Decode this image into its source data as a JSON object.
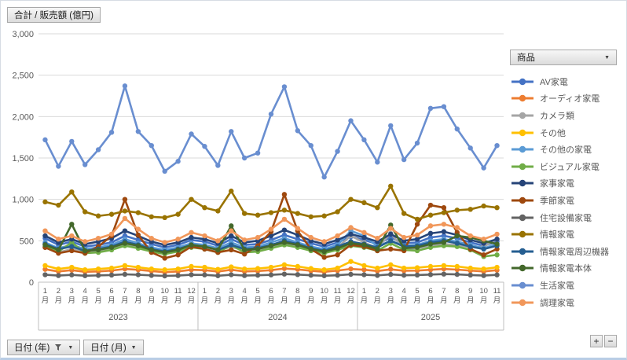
{
  "title_button": "合計 / 販売額 (億円)",
  "legend": {
    "field_label": "商品"
  },
  "filters": [
    {
      "label": "日付 (年)",
      "icons": [
        "filter-icon",
        "dropdown-caret"
      ]
    },
    {
      "label": "日付 (月)",
      "icons": [
        "dropdown-caret"
      ]
    }
  ],
  "zoom_buttons": {
    "plus": "+",
    "minus": "−"
  },
  "axis_colors": {
    "text": "#595959",
    "gridline": "#d9d9d9",
    "axis_line": "#bfbfbf"
  },
  "chart_data": {
    "type": "line",
    "title": "合計 / 販売額 (億円)",
    "ylabel": "",
    "xlabel": "",
    "ylim": [
      0,
      3000
    ],
    "ytick_step": 500,
    "ytick_labels": [
      "0",
      "500",
      "1,000",
      "1,500",
      "2,000",
      "2,500",
      "3,000"
    ],
    "grid": true,
    "legend_position": "right",
    "month_suffix": "月",
    "x_groups": [
      {
        "year": "2023",
        "months": [
          1,
          2,
          3,
          4,
          5,
          6,
          7,
          8,
          9,
          10,
          11,
          12
        ]
      },
      {
        "year": "2024",
        "months": [
          1,
          2,
          3,
          4,
          5,
          6,
          7,
          8,
          9,
          10,
          11,
          12
        ]
      },
      {
        "year": "2025",
        "months": [
          1,
          2,
          3,
          4,
          5,
          6,
          7,
          8,
          9,
          10,
          11
        ]
      }
    ],
    "series": [
      {
        "name": "AV家電",
        "color": "#4472C4",
        "values": [
          530,
          450,
          490,
          430,
          450,
          480,
          560,
          510,
          460,
          420,
          450,
          510,
          490,
          440,
          520,
          450,
          460,
          510,
          570,
          520,
          470,
          430,
          480,
          550,
          510,
          460,
          540,
          470,
          480,
          540,
          560,
          530,
          480,
          440,
          490
        ]
      },
      {
        "name": "オーディオ家電",
        "color": "#ED7D31",
        "values": [
          155,
          130,
          145,
          125,
          130,
          140,
          160,
          150,
          135,
          120,
          130,
          150,
          145,
          128,
          150,
          130,
          135,
          145,
          165,
          155,
          138,
          125,
          140,
          160,
          150,
          135,
          155,
          138,
          140,
          150,
          160,
          152,
          140,
          130,
          145
        ]
      },
      {
        "name": "カメラ類",
        "color": "#A5A5A5",
        "values": [
          420,
          360,
          400,
          360,
          380,
          410,
          450,
          420,
          380,
          350,
          390,
          470,
          420,
          380,
          430,
          380,
          390,
          420,
          460,
          430,
          390,
          360,
          420,
          560,
          480,
          410,
          590,
          400,
          410,
          440,
          460,
          450,
          420,
          430,
          520
        ]
      },
      {
        "name": "その他",
        "color": "#FFC000",
        "values": [
          200,
          160,
          180,
          150,
          160,
          170,
          200,
          180,
          160,
          150,
          160,
          190,
          180,
          155,
          185,
          160,
          165,
          180,
          210,
          190,
          165,
          150,
          170,
          250,
          200,
          170,
          210,
          170,
          175,
          190,
          200,
          190,
          170,
          160,
          180
        ]
      },
      {
        "name": "その他の家電",
        "color": "#5B9BD5",
        "values": [
          480,
          410,
          450,
          400,
          420,
          450,
          520,
          470,
          420,
          390,
          420,
          470,
          450,
          410,
          480,
          420,
          430,
          480,
          530,
          480,
          430,
          400,
          450,
          620,
          560,
          430,
          500,
          440,
          450,
          500,
          520,
          490,
          450,
          410,
          460
        ]
      },
      {
        "name": "ビジュアル家電",
        "color": "#70AD47",
        "values": [
          430,
          370,
          480,
          350,
          360,
          390,
          440,
          410,
          370,
          340,
          370,
          420,
          400,
          360,
          450,
          360,
          370,
          410,
          450,
          420,
          380,
          350,
          390,
          440,
          420,
          380,
          470,
          390,
          380,
          420,
          440,
          430,
          390,
          310,
          330
        ]
      },
      {
        "name": "家事家電",
        "color": "#264478",
        "values": [
          560,
          480,
          520,
          460,
          490,
          530,
          620,
          560,
          490,
          450,
          480,
          540,
          520,
          470,
          560,
          480,
          500,
          560,
          630,
          570,
          500,
          460,
          510,
          580,
          540,
          490,
          580,
          500,
          520,
          590,
          610,
          570,
          510,
          470,
          520
        ]
      },
      {
        "name": "季節家電",
        "color": "#9E480E",
        "values": [
          420,
          350,
          380,
          350,
          430,
          560,
          1000,
          570,
          360,
          290,
          330,
          430,
          400,
          360,
          390,
          340,
          440,
          610,
          1060,
          620,
          400,
          300,
          330,
          450,
          430,
          380,
          400,
          380,
          700,
          930,
          900,
          600,
          400,
          330,
          400
        ]
      },
      {
        "name": "住宅設備家電",
        "color": "#636363",
        "values": [
          90,
          80,
          88,
          78,
          82,
          86,
          95,
          90,
          82,
          76,
          80,
          90,
          88,
          78,
          90,
          80,
          84,
          88,
          98,
          92,
          84,
          78,
          84,
          95,
          90,
          82,
          94,
          84,
          86,
          92,
          98,
          94,
          86,
          80,
          88
        ]
      },
      {
        "name": "情報家電",
        "color": "#997300",
        "values": [
          970,
          930,
          1090,
          850,
          800,
          820,
          860,
          840,
          790,
          780,
          820,
          1000,
          900,
          860,
          1100,
          830,
          810,
          840,
          870,
          830,
          790,
          800,
          850,
          1000,
          960,
          900,
          1160,
          830,
          760,
          810,
          840,
          870,
          880,
          920,
          900
        ]
      },
      {
        "name": "情報家電周辺機器",
        "color": "#255E91",
        "values": [
          460,
          400,
          430,
          380,
          400,
          430,
          490,
          450,
          400,
          370,
          400,
          450,
          430,
          390,
          450,
          400,
          410,
          450,
          500,
          460,
          410,
          380,
          430,
          490,
          460,
          420,
          500,
          430,
          440,
          480,
          500,
          470,
          430,
          400,
          440
        ]
      },
      {
        "name": "情報家電本体",
        "color": "#43682B",
        "values": [
          450,
          390,
          700,
          380,
          390,
          420,
          470,
          440,
          390,
          360,
          390,
          450,
          430,
          390,
          680,
          390,
          400,
          440,
          480,
          450,
          400,
          370,
          410,
          470,
          450,
          400,
          690,
          410,
          420,
          460,
          480,
          560,
          540,
          500,
          460
        ]
      },
      {
        "name": "生活家電",
        "color": "#698ED0",
        "values": [
          1720,
          1400,
          1700,
          1420,
          1600,
          1810,
          2370,
          1820,
          1650,
          1340,
          1460,
          1790,
          1640,
          1410,
          1820,
          1500,
          1560,
          2030,
          2360,
          1830,
          1650,
          1270,
          1580,
          1950,
          1720,
          1450,
          1890,
          1480,
          1680,
          2100,
          2120,
          1850,
          1620,
          1380,
          1650
        ]
      },
      {
        "name": "調理家電",
        "color": "#F1975A",
        "values": [
          620,
          520,
          560,
          490,
          530,
          580,
          770,
          640,
          530,
          480,
          520,
          600,
          560,
          500,
          620,
          510,
          540,
          640,
          760,
          650,
          540,
          490,
          560,
          660,
          600,
          530,
          650,
          540,
          570,
          680,
          700,
          660,
          560,
          520,
          580
        ]
      }
    ]
  }
}
